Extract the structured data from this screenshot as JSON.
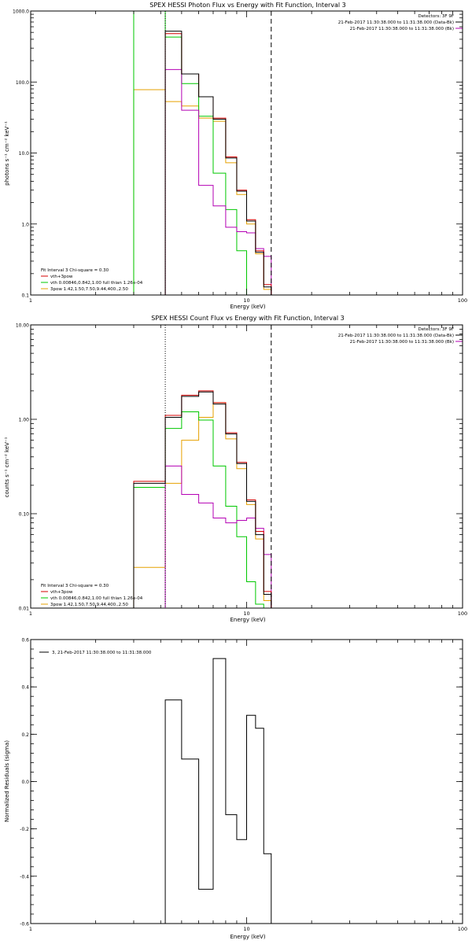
{
  "chart_data": [
    {
      "type": "line",
      "title": "SPEX HESSI Photon Flux vs Energy with Fit Function, Interval 3",
      "xlabel": "Energy (keV)",
      "ylabel": "photons s⁻¹ cm⁻² keV⁻¹",
      "xscale": "log",
      "yscale": "log",
      "xlim": [
        1,
        100
      ],
      "ylim": [
        0.1,
        1000
      ],
      "xticks": [
        {
          "v": 1,
          "label": "1"
        },
        {
          "v": 10,
          "label": "10"
        },
        {
          "v": 100,
          "label": "100"
        }
      ],
      "yticks": [
        {
          "v": 0.1,
          "label": "0.1"
        },
        {
          "v": 1,
          "label": "1.0"
        },
        {
          "v": 10,
          "label": "10.0"
        },
        {
          "v": 100,
          "label": "100.0"
        },
        {
          "v": 1000,
          "label": "1000.0"
        }
      ],
      "vlines": [
        {
          "x": 4.2,
          "style": "dotted"
        },
        {
          "x": 13.0,
          "style": "dashed"
        }
      ],
      "legend_header": [
        "Detectors: 3F 9F",
        "21-Feb-2017 11:30:38.000 to 11:31:38.000 (Data-Bk)",
        "21-Feb-2017 11:30:38.000 to 11:31:38.000 (Bk)"
      ],
      "fit_info": {
        "heading": "Fit Interval  3   Chi-square = 0.30",
        "lines": [
          "vth+3pow",
          "vth 0.00846,0.842,1.00  full thian 1.26e-04",
          "3pow 1.42,1.50,7.50,9.44,400.,2.50"
        ]
      },
      "series": [
        {
          "color": "#000000",
          "edges": [
            3,
            4.2,
            5,
            6,
            7,
            8,
            9,
            10,
            11,
            12,
            13
          ],
          "values": [
            0.1,
            520,
            130,
            62,
            30,
            8.5,
            2.9,
            1.1,
            0.4,
            0.13
          ]
        },
        {
          "color": "#d40000",
          "edges": [
            3,
            4.2,
            5,
            6,
            7,
            8,
            9,
            10,
            11,
            12,
            13
          ],
          "values": [
            0.1,
            480,
            130,
            62,
            31,
            8.8,
            3.0,
            1.15,
            0.42,
            0.14
          ]
        },
        {
          "color": "#b400b4",
          "edges": [
            3,
            4.2,
            5,
            6,
            7,
            8,
            9,
            10,
            11,
            12,
            13
          ],
          "values": [
            0.1,
            150,
            40,
            3.5,
            1.8,
            0.9,
            0.78,
            0.75,
            0.45,
            0.35
          ]
        },
        {
          "color": "#00c800",
          "edges": [
            3,
            4.2,
            5,
            6,
            7,
            8,
            9,
            10,
            11,
            12,
            13
          ],
          "values": [
            1000,
            430,
            95,
            33,
            5.2,
            1.6,
            0.42,
            0.1,
            0.1,
            0.1
          ]
        },
        {
          "color": "#e6a000",
          "edges": [
            3,
            4.2,
            5,
            6,
            7,
            8,
            9,
            10,
            11,
            12,
            13
          ],
          "values": [
            78,
            53,
            46,
            31,
            28,
            7.3,
            2.6,
            1.0,
            0.38,
            0.12
          ]
        }
      ]
    },
    {
      "type": "line",
      "title": "SPEX HESSI Count Flux vs Energy with Fit Function, Interval 3",
      "xlabel": "Energy (keV)",
      "ylabel": "counts s⁻¹ cm⁻² keV⁻¹",
      "xscale": "log",
      "yscale": "log",
      "xlim": [
        1,
        100
      ],
      "ylim": [
        0.01,
        10
      ],
      "xticks": [
        {
          "v": 1,
          "label": "1"
        },
        {
          "v": 10,
          "label": "10"
        },
        {
          "v": 100,
          "label": "100"
        }
      ],
      "yticks": [
        {
          "v": 0.01,
          "label": "0.01"
        },
        {
          "v": 0.1,
          "label": "0.10"
        },
        {
          "v": 1,
          "label": "1.00"
        },
        {
          "v": 10,
          "label": "10.00"
        }
      ],
      "vlines": [
        {
          "x": 4.2,
          "style": "dotted"
        },
        {
          "x": 13.0,
          "style": "dashed"
        }
      ],
      "legend_header": [
        "Detectors: 3F 9F",
        "21-Feb-2017 11:30:38.000 to 11:31:38.000 (Data-Bk)",
        "21-Feb-2017 11:30:38.000 to 11:31:38.000 (Bk)"
      ],
      "fit_info": {
        "heading": "Fit Interval  3   Chi-square = 0.30",
        "lines": [
          "vth+3pow",
          "vth 0.00846,0.842,1.00  full thian 1.26e-04",
          "3pow 1.42,1.50,7.50,9.44,400.,2.50"
        ]
      },
      "series": [
        {
          "color": "#000000",
          "edges": [
            3,
            4.2,
            5,
            6,
            7,
            8,
            9,
            10,
            11,
            12,
            13
          ],
          "values": [
            0.21,
            1.05,
            1.75,
            1.95,
            1.45,
            0.7,
            0.34,
            0.135,
            0.06,
            0.014
          ]
        },
        {
          "color": "#d40000",
          "edges": [
            3,
            4.2,
            5,
            6,
            7,
            8,
            9,
            10,
            11,
            12,
            13
          ],
          "values": [
            0.22,
            1.1,
            1.8,
            2.0,
            1.5,
            0.72,
            0.35,
            0.14,
            0.065,
            0.015
          ]
        },
        {
          "color": "#b400b4",
          "edges": [
            3,
            4.2,
            5,
            6,
            7,
            8,
            9,
            10,
            11,
            12,
            13
          ],
          "values": [
            0.01,
            0.32,
            0.16,
            0.13,
            0.09,
            0.08,
            0.085,
            0.09,
            0.07,
            0.037
          ]
        },
        {
          "color": "#00c800",
          "edges": [
            3,
            4.2,
            5,
            6,
            7,
            8,
            9,
            10,
            11,
            12,
            13
          ],
          "values": [
            0.19,
            0.8,
            1.2,
            0.98,
            0.32,
            0.12,
            0.057,
            0.019,
            0.011,
            0.01
          ]
        },
        {
          "color": "#e6a000",
          "edges": [
            3,
            4.2,
            5,
            6,
            7,
            8,
            9,
            10,
            11,
            12,
            13
          ],
          "values": [
            0.027,
            0.21,
            0.6,
            1.05,
            1.5,
            0.62,
            0.3,
            0.125,
            0.054,
            0.012
          ]
        }
      ]
    },
    {
      "type": "line",
      "title": "",
      "xlabel": "Energy (keV)",
      "ylabel": "Normalized Residuals (sigma)",
      "xscale": "log",
      "yscale": "linear",
      "xlim": [
        1,
        100
      ],
      "ylim": [
        -0.6,
        0.6
      ],
      "xticks": [
        {
          "v": 1,
          "label": "1"
        },
        {
          "v": 10,
          "label": "10"
        },
        {
          "v": 100,
          "label": "100"
        }
      ],
      "yticks": [
        {
          "v": -0.6,
          "label": "-0.6"
        },
        {
          "v": -0.4,
          "label": "-0.4"
        },
        {
          "v": -0.2,
          "label": "-0.2"
        },
        {
          "v": 0,
          "label": "0.0"
        },
        {
          "v": 0.2,
          "label": "0.2"
        },
        {
          "v": 0.4,
          "label": "0.4"
        },
        {
          "v": 0.6,
          "label": "0.6"
        }
      ],
      "vlines": [],
      "legend_header": [],
      "fit_info": null,
      "legend": [
        {
          "label": "3, 21-Feb-2017 11:30:38.000 to 11:31:38.000",
          "color": "#000000"
        }
      ],
      "series": [
        {
          "color": "#000000",
          "edges": [
            4.2,
            5,
            6,
            7,
            8,
            9,
            10,
            11,
            12,
            13
          ],
          "values": [
            0.345,
            0.095,
            -0.455,
            0.52,
            -0.14,
            -0.245,
            0.28,
            0.225,
            -0.305
          ]
        }
      ]
    }
  ]
}
